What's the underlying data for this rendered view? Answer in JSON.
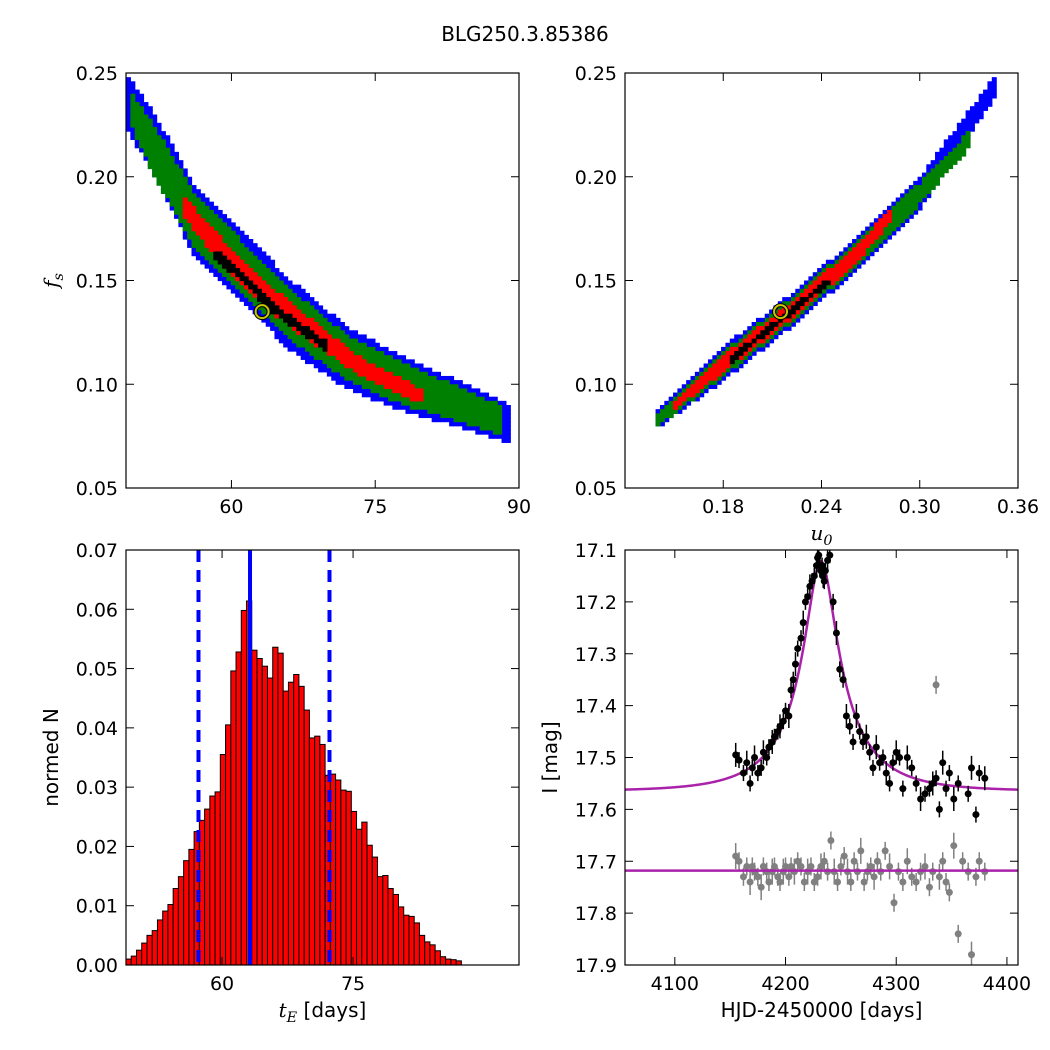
{
  "figure": {
    "title": "BLG250.3.85386"
  },
  "chart_data": [
    {
      "type": "heatmap",
      "panel": "top-left",
      "xlabel": "",
      "ylabel": "f_s",
      "xlim": [
        49,
        90
      ],
      "ylim": [
        0.05,
        0.25
      ],
      "xticks": [
        60,
        75,
        90
      ],
      "yticks": [
        0.05,
        0.1,
        0.15,
        0.2,
        0.25
      ],
      "xtick_labels": [
        "60",
        "75",
        "90"
      ],
      "ytick_labels": [
        "0.05",
        "0.10",
        "0.15",
        "0.20",
        "0.25"
      ],
      "colors": {
        "outer": "#0000ff",
        "middle": "#008000",
        "inner": "#ff0000",
        "core": "#000000"
      },
      "contour_bands": [
        {
          "name": "outer",
          "x": [
            49,
            52,
            56,
            60,
            66,
            72,
            78,
            84,
            89
          ],
          "y": [
            0.237,
            0.215,
            0.18,
            0.162,
            0.134,
            0.113,
            0.1,
            0.09,
            0.081
          ],
          "width": [
            0.013,
            0.015,
            0.017,
            0.017,
            0.017,
            0.015,
            0.013,
            0.011,
            0.009
          ]
        },
        {
          "name": "middle",
          "x": [
            49.5,
            52,
            56,
            60,
            66,
            72,
            78,
            84,
            88
          ],
          "y": [
            0.233,
            0.212,
            0.18,
            0.161,
            0.134,
            0.113,
            0.1,
            0.09,
            0.083
          ],
          "width": [
            0.008,
            0.012,
            0.013,
            0.013,
            0.012,
            0.011,
            0.01,
            0.008,
            0.007
          ]
        },
        {
          "name": "inner",
          "x": [
            55,
            58,
            62,
            66,
            70,
            74,
            78,
            80
          ],
          "y": [
            0.186,
            0.169,
            0.149,
            0.134,
            0.12,
            0.107,
            0.098,
            0.094
          ],
          "width": [
            0.005,
            0.006,
            0.006,
            0.006,
            0.005,
            0.004,
            0.004,
            0.003
          ]
        },
        {
          "name": "core",
          "x": [
            58,
            61,
            64,
            67,
            70
          ],
          "y": [
            0.164,
            0.152,
            0.138,
            0.128,
            0.118
          ],
          "width": [
            0.0022,
            0.0022,
            0.0022,
            0.0022,
            0.0022
          ]
        }
      ],
      "best_fit": {
        "x": 63.2,
        "y": 0.135
      }
    },
    {
      "type": "heatmap",
      "panel": "top-right",
      "xlabel": "u_0",
      "ylabel": "",
      "xlim": [
        0.12,
        0.36
      ],
      "ylim": [
        0.05,
        0.25
      ],
      "xticks": [
        0.18,
        0.24,
        0.3,
        0.36
      ],
      "yticks": [
        0.05,
        0.1,
        0.15,
        0.2,
        0.25
      ],
      "xtick_labels": [
        "0.18",
        "0.24",
        "0.30",
        "0.36"
      ],
      "ytick_labels": [
        "0.05",
        "0.10",
        "0.15",
        "0.20",
        "0.25"
      ],
      "colors": {
        "outer": "#0000ff",
        "middle": "#008000",
        "inner": "#ff0000",
        "core": "#000000"
      },
      "contour_bands": [
        {
          "name": "outer",
          "x": [
            0.138,
            0.18,
            0.22,
            0.26,
            0.3,
            0.347
          ],
          "y": [
            0.082,
            0.11,
            0.135,
            0.162,
            0.192,
            0.245
          ],
          "width": [
            0.004,
            0.008,
            0.008,
            0.008,
            0.008,
            0.005
          ]
        },
        {
          "name": "middle",
          "x": [
            0.138,
            0.18,
            0.22,
            0.26,
            0.3,
            0.33
          ],
          "y": [
            0.082,
            0.11,
            0.135,
            0.162,
            0.192,
            0.218
          ],
          "width": [
            0.003,
            0.006,
            0.006,
            0.006,
            0.005,
            0.004
          ]
        },
        {
          "name": "inner",
          "x": [
            0.15,
            0.18,
            0.22,
            0.26,
            0.283
          ],
          "y": [
            0.09,
            0.11,
            0.135,
            0.162,
            0.182
          ],
          "width": [
            0.002,
            0.004,
            0.004,
            0.004,
            0.003
          ]
        },
        {
          "name": "core",
          "x": [
            0.185,
            0.2,
            0.215,
            0.23,
            0.245
          ],
          "y": [
            0.112,
            0.122,
            0.131,
            0.141,
            0.15
          ],
          "width": [
            0.0015,
            0.0015,
            0.0015,
            0.0015,
            0.0015
          ]
        }
      ],
      "best_fit": {
        "x": 0.215,
        "y": 0.135
      }
    },
    {
      "type": "bar",
      "panel": "bottom-left",
      "xlabel": "t_E [days]",
      "ylabel": "normed N",
      "xlim": [
        49,
        94
      ],
      "ylim": [
        0,
        0.07
      ],
      "xticks": [
        60,
        75
      ],
      "yticks": [
        0.0,
        0.01,
        0.02,
        0.03,
        0.04,
        0.05,
        0.06,
        0.07
      ],
      "xtick_labels": [
        "60",
        "75"
      ],
      "ytick_labels": [
        "0.00",
        "0.01",
        "0.02",
        "0.03",
        "0.04",
        "0.05",
        "0.06",
        "0.07"
      ],
      "bin_start": 49,
      "bin_width": 0.6,
      "values": [
        0.001,
        0.0015,
        0.0025,
        0.0037,
        0.005,
        0.0058,
        0.0076,
        0.0091,
        0.0102,
        0.0129,
        0.0149,
        0.0176,
        0.0195,
        0.0225,
        0.0244,
        0.0263,
        0.0285,
        0.0292,
        0.0355,
        0.0405,
        0.0496,
        0.0528,
        0.0598,
        0.0614,
        0.0531,
        0.0517,
        0.0504,
        0.0484,
        0.0536,
        0.0526,
        0.0462,
        0.0477,
        0.049,
        0.047,
        0.043,
        0.0383,
        0.0386,
        0.0372,
        0.032,
        0.0322,
        0.0312,
        0.0295,
        0.0293,
        0.0259,
        0.0229,
        0.0241,
        0.0202,
        0.0182,
        0.0149,
        0.0151,
        0.0129,
        0.0119,
        0.0098,
        0.0084,
        0.0082,
        0.0071,
        0.005,
        0.0039,
        0.0034,
        0.0024,
        0.0014,
        0.001,
        0.0009,
        0.0007
      ],
      "colors": {
        "bar": "#ff0000",
        "edge": "#000000",
        "lines": "#0000ff"
      },
      "median_line": 63.2,
      "interval_lines": [
        57.3,
        72.3
      ]
    },
    {
      "type": "scatter",
      "panel": "bottom-right",
      "xlabel": "HJD-2450000 [days]",
      "ylabel": "I [mag]",
      "xlim": [
        4055,
        4410
      ],
      "ylim": [
        17.9,
        17.1
      ],
      "y_inverted": true,
      "xticks": [
        4100,
        4200,
        4300,
        4400
      ],
      "yticks": [
        17.1,
        17.2,
        17.3,
        17.4,
        17.5,
        17.6,
        17.7,
        17.8,
        17.9
      ],
      "xtick_labels": [
        "4100",
        "4200",
        "4300",
        "4400"
      ],
      "ytick_labels": [
        "17.1",
        "17.2",
        "17.3",
        "17.4",
        "17.5",
        "17.6",
        "17.7",
        "17.8",
        "17.9"
      ],
      "colors": {
        "data": "#000000",
        "residuals": "#808080",
        "model": "#aa22aa"
      },
      "model": {
        "t0": 4232,
        "tE": 63.2,
        "u0": 0.215,
        "fs": 0.135,
        "baseline": 17.565
      },
      "residual_baseline": 17.718,
      "series": [
        {
          "x": [
            4155,
            4158,
            4162,
            4165,
            4168,
            4170,
            4172,
            4175,
            4178,
            4180,
            4183,
            4185,
            4188,
            4190,
            4193,
            4195,
            4198,
            4200,
            4203,
            4205,
            4207,
            4209,
            4211,
            4214,
            4216,
            4218,
            4220,
            4222,
            4224,
            4226,
            4228,
            4229,
            4230,
            4231,
            4232,
            4233,
            4234,
            4235,
            4236,
            4238,
            4240,
            4243,
            4246,
            4249,
            4252,
            4255,
            4258,
            4261,
            4264,
            4267,
            4270,
            4273,
            4276,
            4279,
            4282,
            4285,
            4288,
            4291,
            4294,
            4297,
            4300,
            4303,
            4306,
            4310,
            4314,
            4318,
            4322,
            4326,
            4330,
            4333,
            4336,
            4339,
            4342,
            4345,
            4348,
            4352,
            4356,
            4365,
            4368,
            4372,
            4375,
            4380
          ],
          "y": [
            17.495,
            17.505,
            17.53,
            17.51,
            17.55,
            17.52,
            17.5,
            17.53,
            17.52,
            17.49,
            17.5,
            17.48,
            17.47,
            17.46,
            17.45,
            17.44,
            17.43,
            17.41,
            17.42,
            17.37,
            17.35,
            17.32,
            17.29,
            17.27,
            17.24,
            17.2,
            17.19,
            17.17,
            17.16,
            17.15,
            17.13,
            17.115,
            17.11,
            17.13,
            17.14,
            17.13,
            17.15,
            17.16,
            17.14,
            17.12,
            17.11,
            17.2,
            17.26,
            17.33,
            17.35,
            17.42,
            17.44,
            17.47,
            17.42,
            17.45,
            17.47,
            17.46,
            17.49,
            17.52,
            17.48,
            17.51,
            17.5,
            17.53,
            17.55,
            17.51,
            17.49,
            17.5,
            17.56,
            17.5,
            17.52,
            17.55,
            17.58,
            17.57,
            17.56,
            17.55,
            17.54,
            17.6,
            17.51,
            17.56,
            17.53,
            17.58,
            17.55,
            17.57,
            17.52,
            17.61,
            17.53,
            17.54
          ]
        },
        {
          "x": [
            4155,
            4158,
            4162,
            4165,
            4168,
            4170,
            4172,
            4175,
            4178,
            4180,
            4183,
            4185,
            4188,
            4190,
            4193,
            4195,
            4198,
            4200,
            4203,
            4205,
            4208,
            4211,
            4214,
            4217,
            4220,
            4223,
            4226,
            4229,
            4232,
            4235,
            4238,
            4241,
            4244,
            4247,
            4250,
            4253,
            4256,
            4259,
            4262,
            4265,
            4268,
            4271,
            4274,
            4277,
            4280,
            4283,
            4286,
            4290,
            4294,
            4298,
            4302,
            4306,
            4310,
            4314,
            4318,
            4322,
            4326,
            4330,
            4333,
            4336,
            4339,
            4342,
            4345,
            4348,
            4352,
            4356,
            4360,
            4365,
            4368,
            4372,
            4375,
            4380
          ],
          "y": [
            17.69,
            17.7,
            17.73,
            17.71,
            17.74,
            17.71,
            17.72,
            17.73,
            17.75,
            17.71,
            17.72,
            17.74,
            17.72,
            17.71,
            17.73,
            17.74,
            17.72,
            17.71,
            17.73,
            17.71,
            17.72,
            17.7,
            17.71,
            17.74,
            17.72,
            17.71,
            17.74,
            17.73,
            17.71,
            17.7,
            17.72,
            17.66,
            17.72,
            17.74,
            17.71,
            17.69,
            17.72,
            17.74,
            17.7,
            17.72,
            17.68,
            17.74,
            17.72,
            17.71,
            17.73,
            17.7,
            17.72,
            17.68,
            17.71,
            17.78,
            17.72,
            17.74,
            17.7,
            17.73,
            17.74,
            17.72,
            17.71,
            17.75,
            17.72,
            17.36,
            17.73,
            17.7,
            17.74,
            17.76,
            17.67,
            17.84,
            17.7,
            17.72,
            17.88,
            17.73,
            17.7,
            17.72
          ]
        }
      ]
    }
  ]
}
